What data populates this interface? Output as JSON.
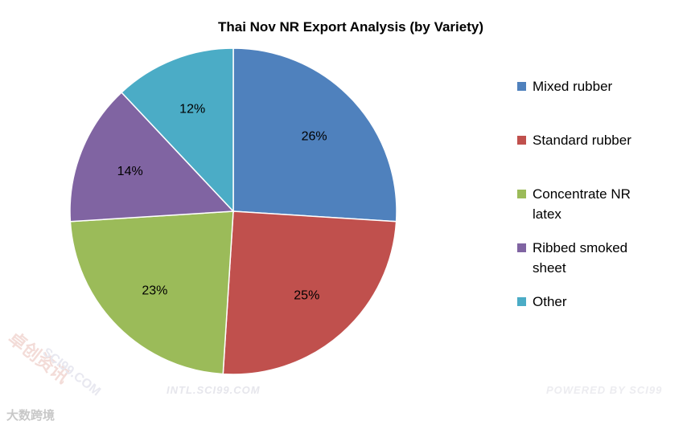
{
  "chart_data": {
    "type": "pie",
    "title": "Thai Nov NR Export Analysis (by Variety)",
    "slices": [
      {
        "name": "Mixed rubber",
        "value": 26,
        "label": "26%",
        "color": "#4f81bd"
      },
      {
        "name": "Standard rubber",
        "value": 25,
        "label": "25%",
        "color": "#c0504d"
      },
      {
        "name": "Concentrate NR latex",
        "value": 23,
        "label": "23%",
        "color": "#9bbb59"
      },
      {
        "name": "Ribbed smoked sheet",
        "value": 14,
        "label": "14%",
        "color": "#8064a2"
      },
      {
        "name": "Other",
        "value": 12,
        "label": "12%",
        "color": "#4bacc6"
      }
    ],
    "legend": {
      "position": "right",
      "entries": [
        {
          "lines": [
            "Mixed rubber"
          ]
        },
        {
          "lines": [
            "Standard rubber"
          ]
        },
        {
          "lines": [
            "Concentrate NR",
            "latex"
          ]
        },
        {
          "lines": [
            "Ribbed smoked",
            "sheet"
          ]
        },
        {
          "lines": [
            "Other"
          ]
        }
      ]
    }
  },
  "watermarks": {
    "left": "INTL.SCI99.COM",
    "right": "POWERED BY SCI99",
    "brand": "卓创资讯",
    "brand_url": "SCI99.COM",
    "bottom": "大数跨境"
  }
}
